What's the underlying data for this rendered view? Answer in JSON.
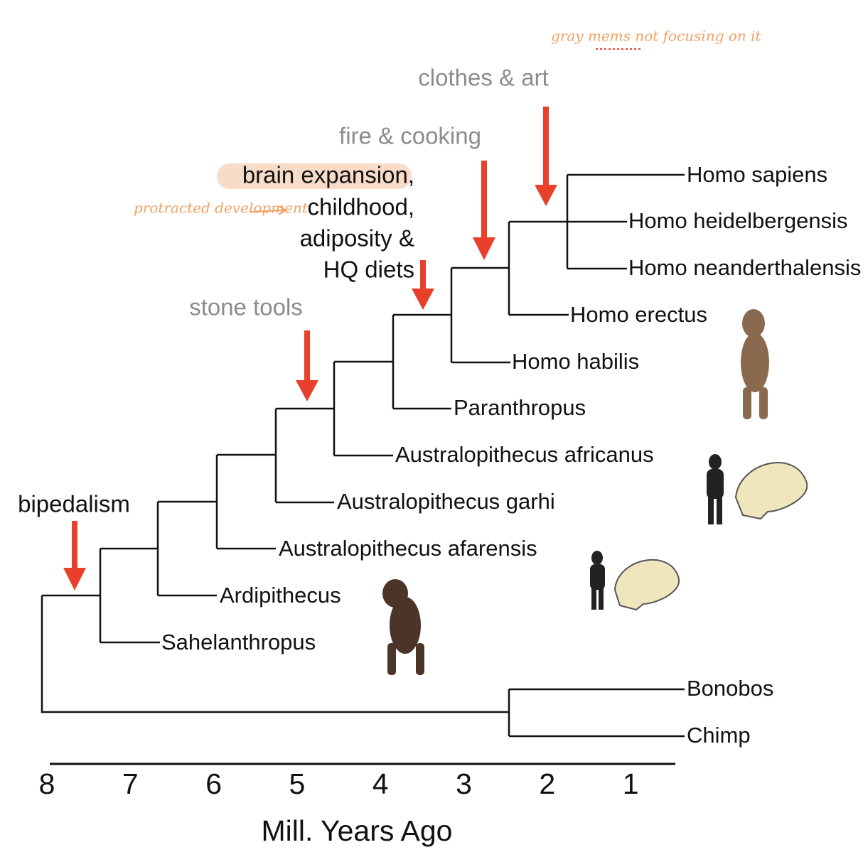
{
  "annotation": "gray mems not focusing on it",
  "side_note": "protracted development",
  "events": {
    "clothes": "clothes & art",
    "fire": "fire & cooking",
    "brain": "brain expansion,",
    "brain_more": [
      "childhood,",
      "adiposity &",
      "HQ diets"
    ],
    "stone": "stone tools",
    "bipedalism": "bipedalism"
  },
  "taxa": [
    "Homo sapiens",
    "Homo heidelbergensis",
    "Homo neanderthalensis",
    "Homo erectus",
    "Homo habilis",
    "Paranthropus",
    "Australopithecus africanus",
    "Australopithecus garhi",
    "Australopithecus afarensis",
    "Ardipithecus",
    "Sahelanthropus",
    "Bonobos",
    "Chimp"
  ],
  "axis": {
    "ticks": [
      8,
      7,
      6,
      5,
      4,
      3,
      2,
      1
    ],
    "label": "Mill. Years Ago"
  }
}
